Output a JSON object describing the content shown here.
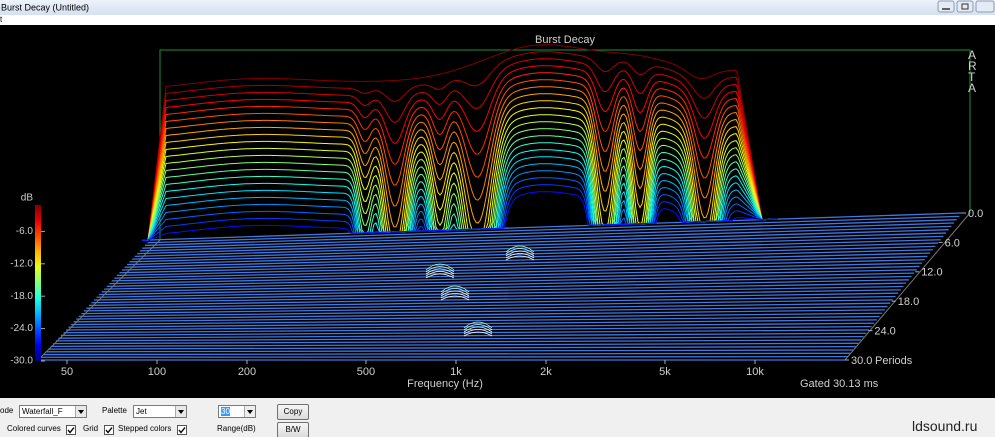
{
  "window": {
    "title": "Burst Decay  (Untitled)",
    "menu": "t"
  },
  "chart_data": {
    "type": "waterfall",
    "title": "Burst Decay",
    "xlabel": "Frequency (Hz)",
    "xscale": "log",
    "xlim": [
      40,
      20000
    ],
    "xticks": [
      50,
      100,
      200,
      500,
      {
        "value": 1000,
        "label": "1k"
      },
      {
        "value": 2000,
        "label": "2k"
      },
      {
        "value": 5000,
        "label": "5k"
      },
      {
        "value": 10000,
        "label": "10k"
      }
    ],
    "colorbar_label": "dB",
    "ylim": [
      -30,
      0
    ],
    "yticks": [
      {
        "value": -6,
        "label": "-6.0"
      },
      {
        "value": -12,
        "label": "-12.0"
      },
      {
        "value": -18,
        "label": "-18.0"
      },
      {
        "value": -24,
        "label": "-24.0"
      },
      {
        "value": -30,
        "label": "-30.0"
      }
    ],
    "zlabel": "Periods",
    "zlim": [
      0,
      30
    ],
    "zticks": [
      {
        "value": 0,
        "label": "0.0"
      },
      {
        "value": 6,
        "label": "6.0"
      },
      {
        "value": 12,
        "label": "12.0"
      },
      {
        "value": 18,
        "label": "18.0"
      },
      {
        "value": 24,
        "label": "24.0"
      },
      {
        "value": 30,
        "label": "30.0"
      }
    ],
    "note": "Gated 30.13 ms",
    "side_label": "ARTA",
    "palette": "jet",
    "grid": true
  },
  "controls": {
    "mode_label": "ode",
    "mode": "Waterfall_F",
    "palette_label": "Palette",
    "palette": "Jet",
    "range": 30,
    "range_label": "Range(dB)",
    "buttons": [
      "Copy",
      "B/W"
    ],
    "checkboxes": [
      {
        "label": "Colored curves",
        "checked": true
      },
      {
        "label": "Grid",
        "checked": true
      },
      {
        "label": "Stepped colors",
        "checked": true
      }
    ]
  },
  "watermark": "ldsound.ru"
}
